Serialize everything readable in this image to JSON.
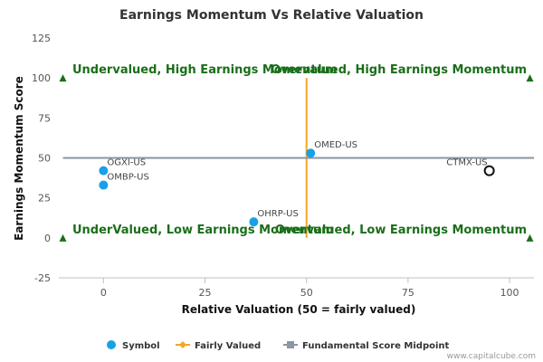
{
  "chart_data": {
    "type": "scatter",
    "title": "Earnings Momentum Vs Relative Valuation",
    "xlabel": "Relative Valuation (50 = fairly valued)",
    "ylabel": "Earnings Momentum Score",
    "xlim": [
      -11,
      106
    ],
    "ylim": [
      -25,
      125
    ],
    "xticks": [
      0,
      25,
      50,
      75,
      100
    ],
    "yticks": [
      -25,
      0,
      25,
      50,
      75,
      100,
      125
    ],
    "grid": false,
    "points": [
      {
        "label": "OGXI-US",
        "x": 0,
        "y": 42,
        "style": "filled"
      },
      {
        "label": "OMBP-US",
        "x": 0,
        "y": 33,
        "style": "filled"
      },
      {
        "label": "OHRP-US",
        "x": 37,
        "y": 10,
        "style": "filled"
      },
      {
        "label": "OMED-US",
        "x": 51,
        "y": 53,
        "style": "filled"
      },
      {
        "label": "CTMX-US",
        "x": 95,
        "y": 42,
        "style": "hollow"
      }
    ],
    "fairly_valued_x": 50,
    "midpoint_y": 50,
    "midpoint_line_y_range": [
      0,
      100
    ],
    "marker_points": [
      {
        "x": -10,
        "y": 100
      },
      {
        "x": 105,
        "y": 100
      },
      {
        "x": -10,
        "y": 0
      },
      {
        "x": 105,
        "y": 0
      }
    ],
    "quadrants": {
      "top_left": "Undervalued, High Earnings Momentum",
      "top_right": "Overvalued, High Earnings Momentum",
      "bottom_left": "UnderValued, Low Earnings Momentum",
      "bottom_right": "Overvalued, Low Earnings Momentum"
    },
    "legend": {
      "placement": "bottom",
      "items": [
        {
          "label": "Symbol",
          "color": "#1aa0e6",
          "shape": "circle"
        },
        {
          "label": "Fairly Valued",
          "color": "#f5a623",
          "shape": "line-diamond"
        },
        {
          "label": "Fundamental Score Midpoint",
          "color": "#8a96a3",
          "shape": "line-square"
        }
      ]
    },
    "colors": {
      "point": "#1aa0e6",
      "fairly_valued": "#f5a623",
      "midpoint": "#8a96a3",
      "quadrant_text": "#1a6e1a",
      "marker": "#1a6e1a"
    }
  },
  "credit": "www.capitalcube.com"
}
